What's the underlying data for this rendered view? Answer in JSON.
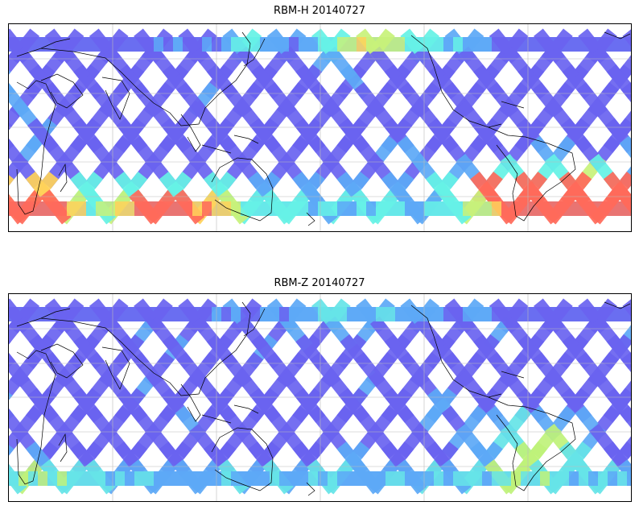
{
  "panels": [
    {
      "title": "RBM-H 20140727",
      "colors": {
        "low": "#6a63f0",
        "mid_low": "#5da9f7",
        "mid": "#66f2e6",
        "mid_high": "#c8f27a",
        "high": "#ffd25a",
        "peak": "#ff6a5a"
      },
      "hot_regions": [
        "north-pacific-band",
        "southern-ocean-west",
        "south-atlantic-southeast"
      ]
    },
    {
      "title": "RBM-Z 20140727",
      "colors": {
        "low": "#6a63f0",
        "mid_low": "#5da9f7",
        "mid": "#66e4e8",
        "mid_high": "#bff27a",
        "high": "#e8f26a",
        "peak": "#f2f06a"
      },
      "hot_regions": [
        "south-atlantic-east"
      ]
    }
  ],
  "map": {
    "projection": "plate-carree",
    "central_longitude": 40,
    "gridlines": true,
    "coastlines": true,
    "gridline_color": "#bbbbbb",
    "coastline_color": "#000000"
  }
}
